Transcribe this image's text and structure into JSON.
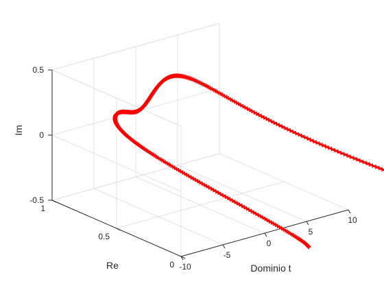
{
  "chart_data": {
    "type": "line",
    "title": "",
    "style": {
      "color": "#ff0000",
      "marker": "+",
      "axis_color": "#262626",
      "grid": true,
      "grid_color": "#dcdcdc"
    },
    "xlabel": "Dominio t",
    "ylabel": "Re",
    "zlabel": "Im",
    "xlim": [
      -10,
      10
    ],
    "ylim": [
      0,
      1
    ],
    "zlim": [
      -0.5,
      0.5
    ],
    "xticks": [
      -10,
      -5,
      0,
      5,
      10
    ],
    "yticks": [
      0,
      0.5,
      1
    ],
    "zticks": [
      -0.5,
      0,
      0.5
    ],
    "xtick_labels": [
      "-10",
      "-5",
      "0",
      "5",
      "10"
    ],
    "ytick_labels": [
      "0",
      "0.5",
      "1"
    ],
    "ztick_labels": [
      "-0.5",
      "0",
      "0.5"
    ],
    "curve": {
      "t_range": [
        -10,
        10
      ],
      "points": 420,
      "description_formula": "Re = cos(0.03*t^2), Im = sin(0.03*t^2) * exp(-0.1*(t-1.5)^2)"
    }
  }
}
